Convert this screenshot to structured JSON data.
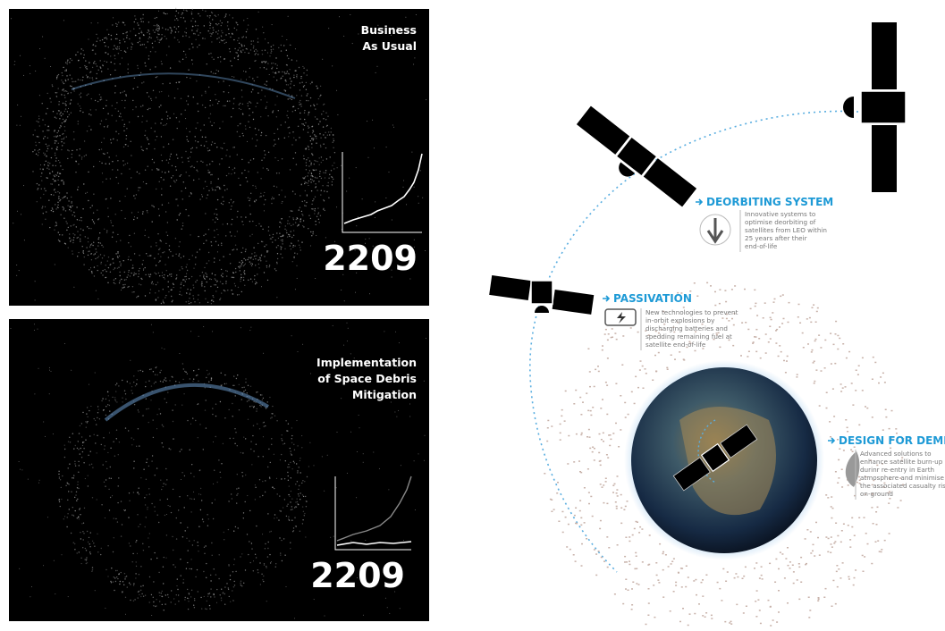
{
  "panels": [
    {
      "title_lines": [
        "Business",
        "As Usual"
      ],
      "year": "2209"
    },
    {
      "title_lines": [
        "Implementation",
        "of Space Debris",
        "Mitigation"
      ],
      "year": "2209"
    }
  ],
  "measures": [
    {
      "title": "DEORBITING SYSTEM",
      "description_lines": [
        "Innovative systems to",
        "optimise deorbiting of",
        "satellites from LEO within",
        "25 years after their",
        "end-of-life"
      ]
    },
    {
      "title": "PASSIVATION",
      "description_lines": [
        "New technologies to prevent",
        "in-orbit explosions by",
        "discharging batteries and",
        "spedding remaining fuel at",
        "satellite end-of-life"
      ]
    },
    {
      "title": "DESIGN FOR DEMISE",
      "description_lines": [
        "Advanced solutions to",
        "enhance satellite burn-up",
        "durinr re-entry in Earth",
        "atmosphere and minimise",
        "the associated casualty risk",
        "on-ground"
      ]
    }
  ]
}
